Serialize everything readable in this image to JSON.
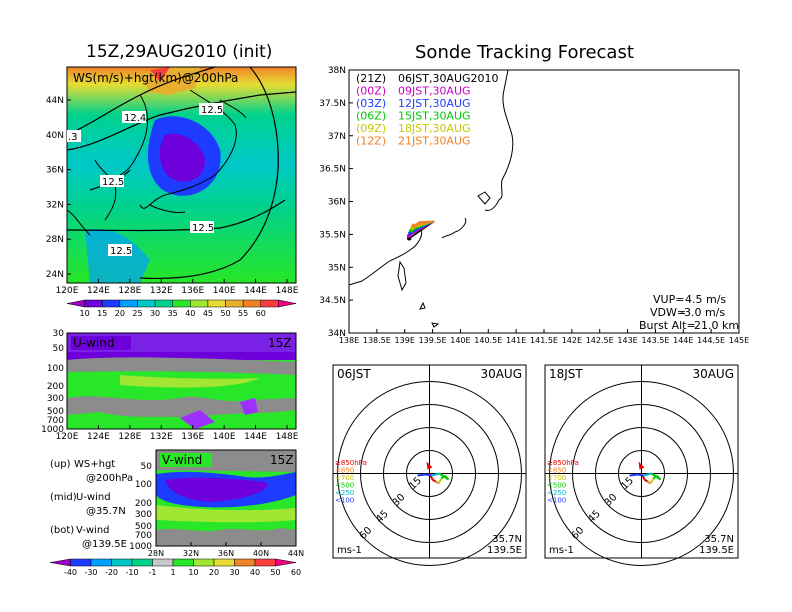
{
  "left_title": "15Z,29AUG2010 (init)",
  "right_title": "Sonde Tracking Forecast",
  "top_map": {
    "label": "WS(m/s)+hgt(km)@200hPa",
    "lat_ticks": [
      "44N",
      "40N",
      "36N",
      "32N",
      "28N",
      "24N"
    ],
    "lon_ticks": [
      "120E",
      "124E",
      "128E",
      "132E",
      "136E",
      "140E",
      "144E",
      "148E"
    ],
    "contour_labels": [
      "12.4",
      "12.5",
      "12.5",
      "12.5",
      "12.5",
      ".3"
    ],
    "colorbar_ticks": [
      "10",
      "15",
      "20",
      "25",
      "30",
      "35",
      "40",
      "45",
      "50",
      "55",
      "60"
    ],
    "colorbar_colors": [
      "#a000c8",
      "#6e00dc",
      "#1e3cff",
      "#00a0ff",
      "#00c8c8",
      "#00d28c",
      "#28e628",
      "#a0e632",
      "#e6dc32",
      "#e6af2d",
      "#f08228",
      "#fa3c3c",
      "#f00082"
    ]
  },
  "u_panel": {
    "label": "U-wind",
    "time": "15Z",
    "levels": [
      "30",
      "50",
      "100",
      "200",
      "300",
      "500",
      "700",
      "1000"
    ],
    "lon_ticks": [
      "120E",
      "124E",
      "128E",
      "132E",
      "136E",
      "140E",
      "144E",
      "148E"
    ]
  },
  "v_panel": {
    "label": "V-wind",
    "time": "15Z",
    "levels": [
      "50",
      "100",
      "200",
      "300",
      "500",
      "700",
      "1000"
    ],
    "lat_ticks": [
      "28N",
      "32N",
      "36N",
      "40N",
      "44N"
    ]
  },
  "notes": [
    {
      "a": "(up)",
      "b": "WS+hgt",
      "c": "@200hPa"
    },
    {
      "a": "(mid)",
      "b": "U-wind",
      "c": "@35.7N"
    },
    {
      "a": "(bot)",
      "b": "V-wind",
      "c": "@139.5E"
    }
  ],
  "bottom_colorbar": {
    "ticks": [
      "-40",
      "-30",
      "-20",
      "-10",
      "-1",
      "1",
      "10",
      "20",
      "30",
      "40",
      "50",
      "60"
    ],
    "colors": [
      "#a000c8",
      "#1e3cff",
      "#00a0ff",
      "#00c8c8",
      "#00d28c",
      "#c8c8c8",
      "#28e628",
      "#a0e632",
      "#e6dc32",
      "#f08228",
      "#fa3c3c",
      "#f00082"
    ]
  },
  "track_map": {
    "lat_ticks": [
      "38N",
      "37.5N",
      "37N",
      "36.5N",
      "36N",
      "35.5N",
      "35N",
      "34.5N",
      "34N"
    ],
    "lon_ticks": [
      "138E",
      "138.5E",
      "139E",
      "139.5E",
      "140E",
      "140.5E",
      "141E",
      "141.5E",
      "142E",
      "142.5E",
      "143E",
      "143.5E",
      "144E",
      "144.5E",
      "145E"
    ],
    "legend": [
      {
        "utc": "(21Z)",
        "jst": "06JST,30AUG2010",
        "color": "#000000"
      },
      {
        "utc": "(00Z)",
        "jst": "09JST,30AUG",
        "color": "#c800c8"
      },
      {
        "utc": "(03Z)",
        "jst": "12JST,30AUG",
        "color": "#1e3cff"
      },
      {
        "utc": "(06Z)",
        "jst": "15JST,30AUG",
        "color": "#00c800"
      },
      {
        "utc": "(09Z)",
        "jst": "18JST,30AUG",
        "color": "#c8c800"
      },
      {
        "utc": "(12Z)",
        "jst": "21JST,30AUG",
        "color": "#f08228"
      }
    ],
    "params": [
      {
        "key": "VUP=",
        "value": "4.5 m/s"
      },
      {
        "key": "VDW=",
        "value": "-3.0 m/s"
      },
      {
        "key": "Burst Alt=",
        "value": "21.0 km"
      }
    ]
  },
  "hodographs": [
    {
      "time": "06JST",
      "date": "30AUG",
      "lat": "35.7N",
      "lon": "139.5E",
      "unit": "ms-1",
      "ring_labels": [
        "15",
        "30",
        "45",
        "60"
      ]
    },
    {
      "time": "18JST",
      "date": "30AUG",
      "lat": "35.7N",
      "lon": "139.5E",
      "unit": "ms-1",
      "ring_labels": [
        "15",
        "30",
        "45",
        "60"
      ]
    }
  ],
  "hodo_legend": [
    {
      "label": "≥850hPa",
      "color": "#e60000"
    },
    {
      "label": "<850",
      "color": "#f08228"
    },
    {
      "label": "<700",
      "color": "#c8c800"
    },
    {
      "label": "<500",
      "color": "#00c800"
    },
    {
      "label": "<250",
      "color": "#00b4c8"
    },
    {
      "label": "<100",
      "color": "#1e3cff"
    }
  ],
  "chart_data": [
    {
      "type": "heatmap",
      "title": "WS(m/s)+hgt(km)@200hPa",
      "xlim": [
        120,
        150
      ],
      "ylim": [
        22,
        47
      ],
      "contour_levels_km": [
        12.3,
        12.4,
        12.5
      ],
      "colorbar": [
        10,
        60
      ]
    },
    {
      "type": "heatmap",
      "title": "U-wind",
      "xlim": [
        120,
        150
      ],
      "ylim_hPa": [
        1000,
        30
      ]
    },
    {
      "type": "heatmap",
      "title": "V-wind",
      "xlim": [
        28,
        44
      ],
      "ylim_hPa": [
        1000,
        30
      ]
    },
    {
      "type": "line",
      "title": "Sonde Tracking Forecast",
      "xlim": [
        138,
        145
      ],
      "ylim": [
        34,
        38
      ],
      "series": [
        {
          "name": "(21Z) 06JST,30AUG2010",
          "launch": [
            139.53,
            35.7
          ],
          "landing": [
            139.08,
            35.44
          ]
        },
        {
          "name": "(00Z) 09JST,30AUG",
          "launch": [
            139.53,
            35.7
          ],
          "landing": [
            139.08,
            35.48
          ]
        },
        {
          "name": "(03Z) 12JST,30AUG",
          "launch": [
            139.53,
            35.7
          ],
          "landing": [
            139.1,
            35.52
          ]
        },
        {
          "name": "(06Z) 15JST,30AUG",
          "launch": [
            139.53,
            35.7
          ],
          "landing": [
            139.12,
            35.56
          ]
        },
        {
          "name": "(09Z) 18JST,30AUG",
          "launch": [
            139.53,
            35.7
          ],
          "landing": [
            139.14,
            35.6
          ]
        },
        {
          "name": "(12Z) 21JST,30AUG",
          "launch": [
            139.53,
            35.7
          ],
          "landing": [
            139.16,
            35.63
          ]
        }
      ]
    },
    {
      "type": "scatter",
      "title": "06JST 30AUG",
      "rings": [
        15,
        30,
        45,
        60
      ]
    },
    {
      "type": "scatter",
      "title": "18JST 30AUG",
      "rings": [
        15,
        30,
        45,
        60
      ]
    }
  ]
}
